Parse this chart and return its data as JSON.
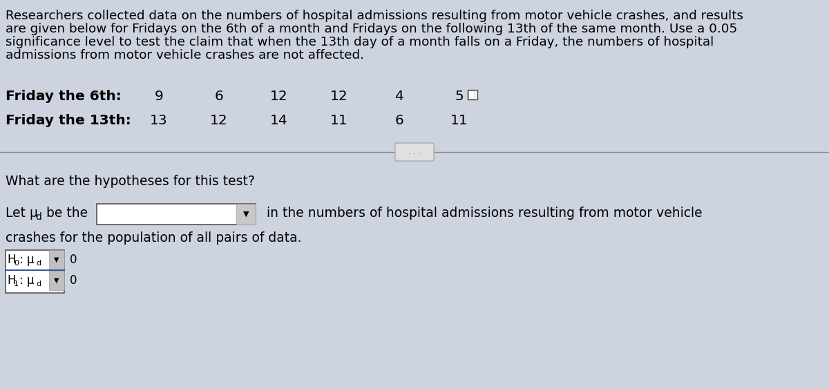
{
  "bg_color": "#cdd4e0",
  "top_paragraph_lines": [
    "Researchers collected data on the numbers of hospital admissions resulting from motor vehicle crashes, and results",
    "are given below for Fridays on the 6th of a month and Fridays on the following 13th of the same month. Use a 0.05",
    "significance level to test the claim that when the 13th day of a month falls on a Friday, the numbers of hospital",
    "admissions from motor vehicle crashes are not affected."
  ],
  "row1_label": "Friday the 6th:",
  "row2_label": "Friday the 13th:",
  "row1_values": [
    "9",
    "6",
    "12",
    "12",
    "4",
    "5"
  ],
  "row2_values": [
    "13",
    "12",
    "14",
    "11",
    "6",
    "11"
  ],
  "question_text": "What are the hypotheses for this test?",
  "let_mu_text": "Let μ",
  "let_mu_sub": "d",
  "let_mu_rest": " be the",
  "let_mu_suffix": " in the numbers of hospital admissions resulting from motor vehicle",
  "crashes_text": "crashes for the population of all pairs of data.",
  "H0_prefix": "H",
  "H0_sub0": "0",
  "H0_mid": ": μ",
  "H0_subd": "d",
  "H0_suffix": "0",
  "H1_prefix": "H",
  "H1_sub1": "1",
  "H1_mid": ": μ",
  "H1_subd": "d",
  "H1_suffix": "0",
  "font_size_paragraph": 13.2,
  "font_size_data": 14.5,
  "font_size_question": 13.5,
  "font_size_hyp": 13.5
}
